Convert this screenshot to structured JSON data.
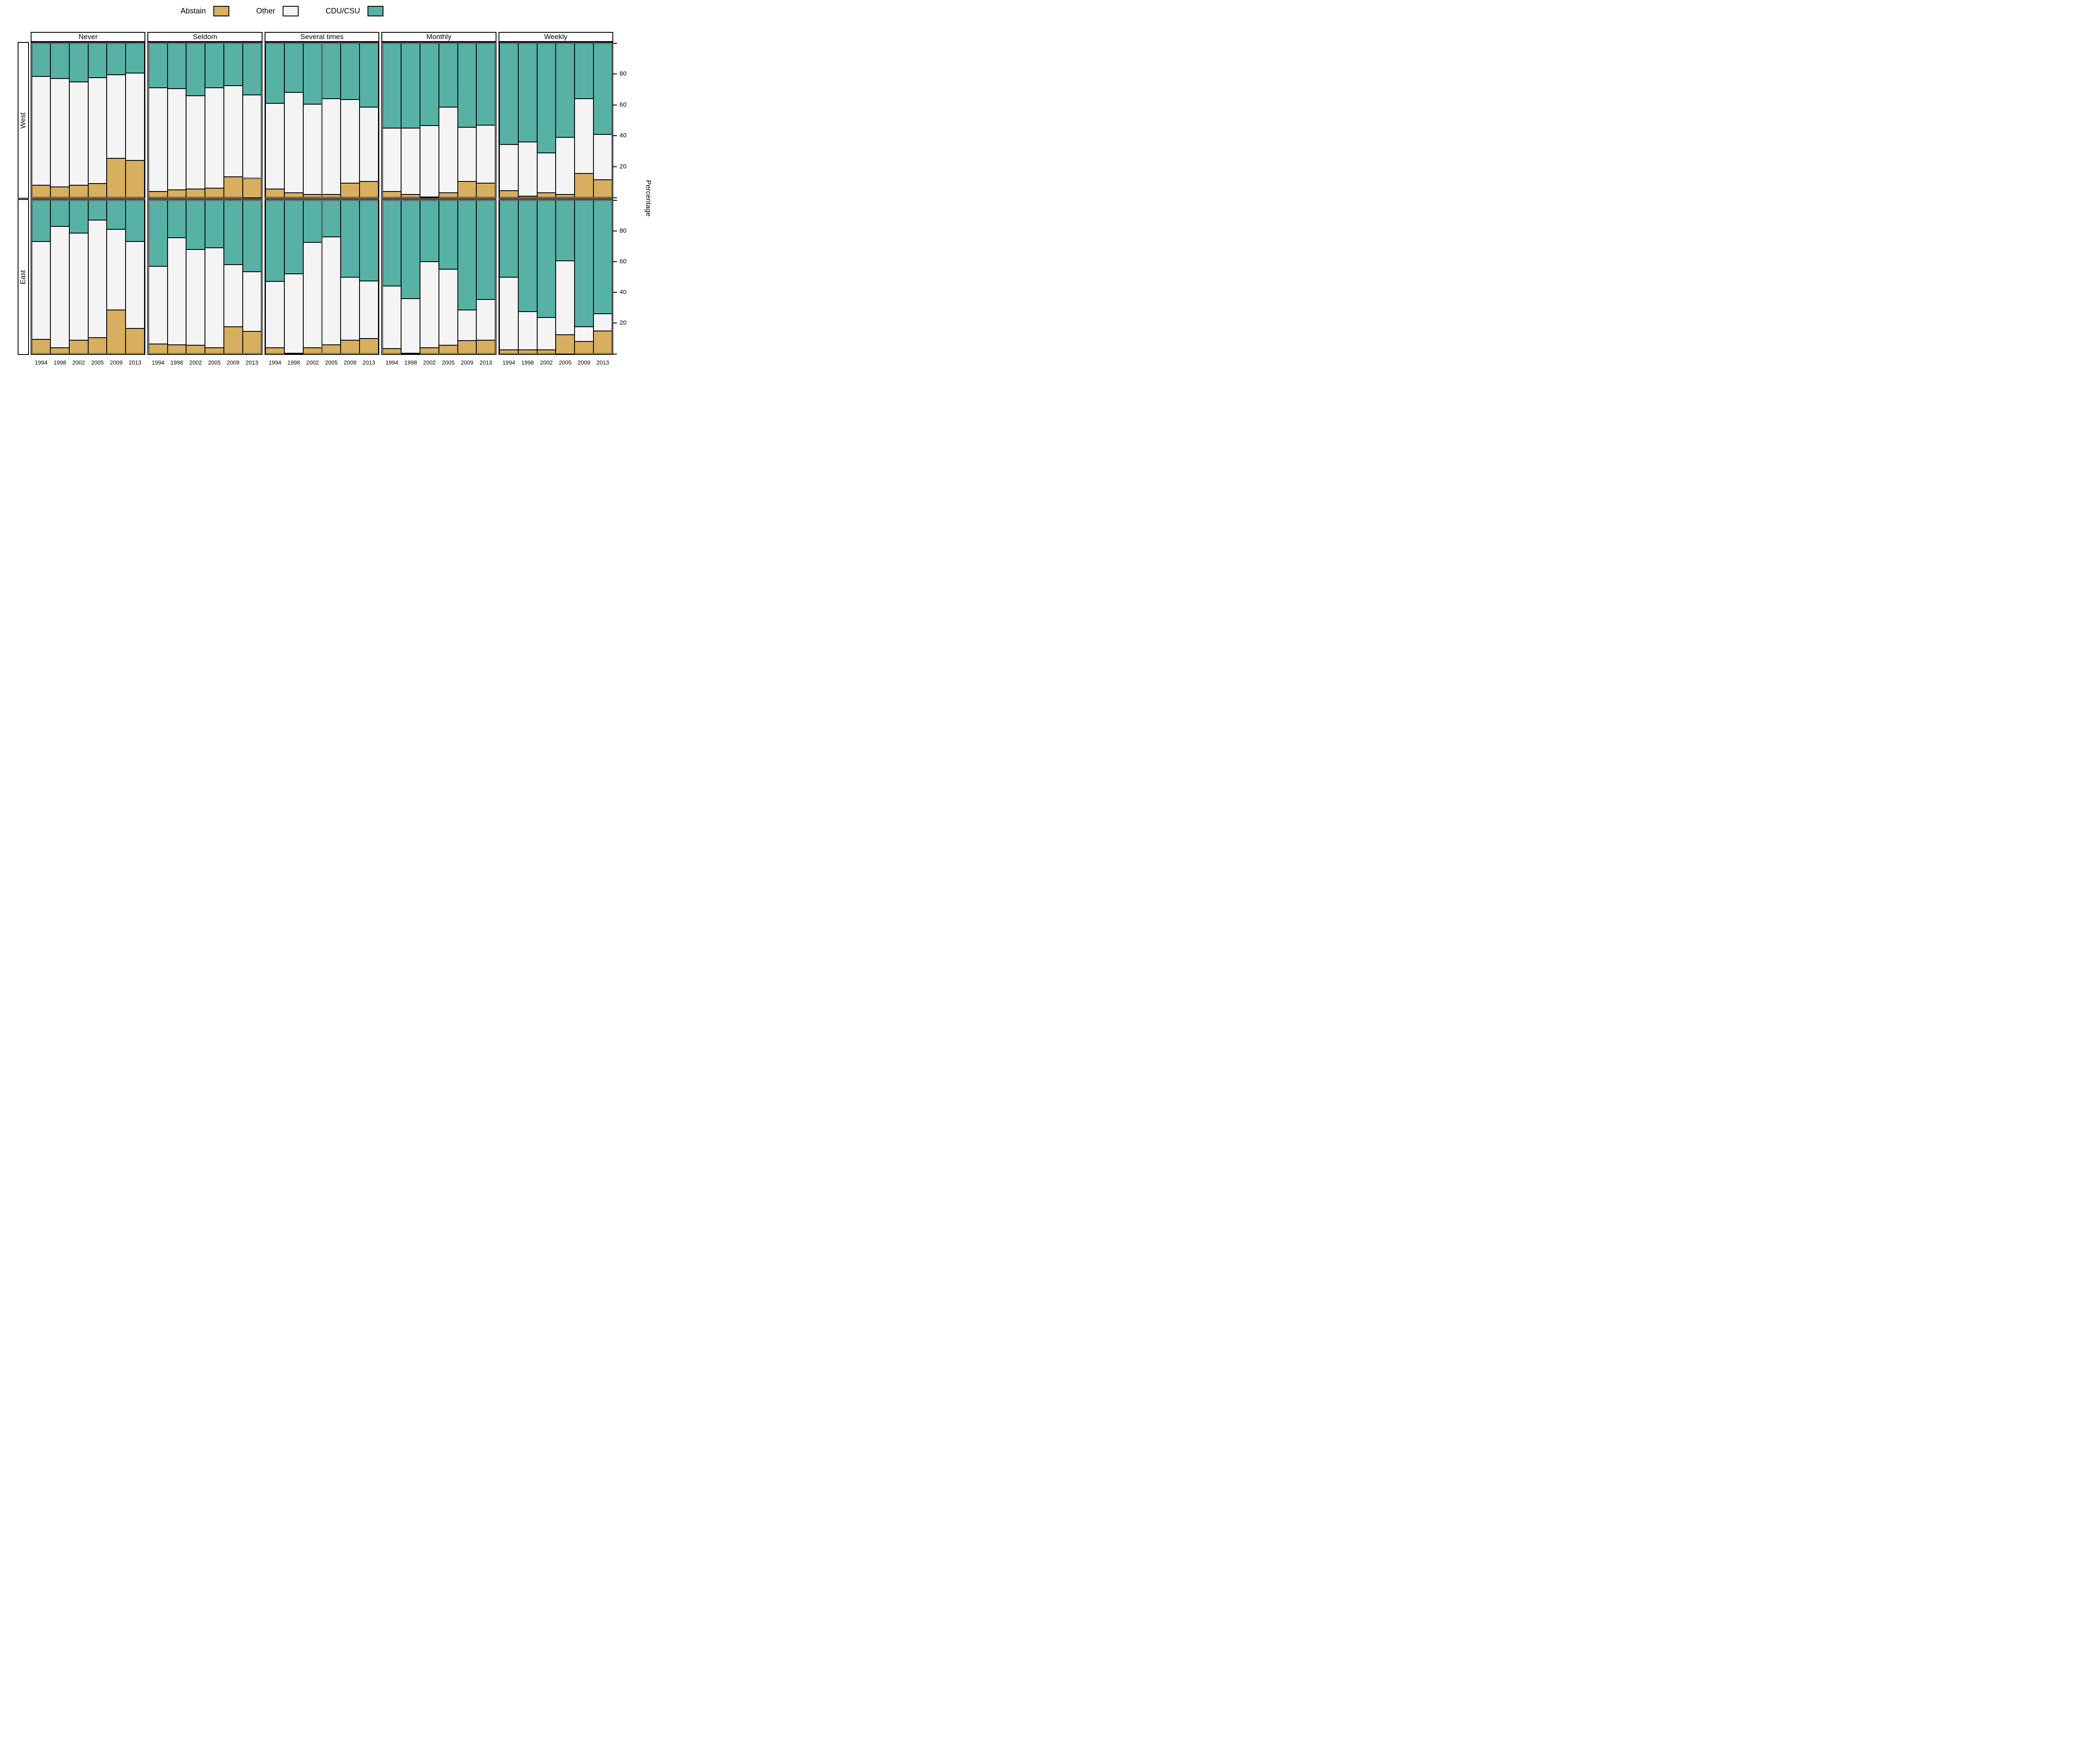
{
  "legend": {
    "items": [
      {
        "label": "Abstain",
        "color": "#d8ae5f"
      },
      {
        "label": "Other",
        "color": "#f4f4f4"
      },
      {
        "label": "CDU/CSU",
        "color": "#57b2a5"
      }
    ]
  },
  "chart_data": {
    "type": "bar",
    "subtype": "stacked-percentage-lattice",
    "title": "",
    "xlabel": "",
    "ylabel": "Percentage",
    "ylim": [
      0,
      100
    ],
    "y_ticks": [
      20,
      40,
      60,
      80
    ],
    "legend_position": "top",
    "grid": false,
    "row_facets": [
      "West",
      "East"
    ],
    "column_facets": [
      "Never",
      "Seldom",
      "Several times",
      "Monthly",
      "Weekly"
    ],
    "categories": [
      "1994",
      "1998",
      "2002",
      "2005",
      "2009",
      "2013"
    ],
    "stack_order_bottom_to_top": [
      "Abstain",
      "Other",
      "CDU/CSU"
    ],
    "colors": {
      "Abstain": "#d8ae5f",
      "Other": "#f4f4f4",
      "CDU/CSU": "#57b2a5"
    },
    "panels": [
      {
        "region": "West",
        "attendance": "Never",
        "bars": [
          {
            "year": "1994",
            "abstain": 8,
            "other": 70.5,
            "cdu": 21.5
          },
          {
            "year": "1998",
            "abstain": 7,
            "other": 70,
            "cdu": 23
          },
          {
            "year": "2002",
            "abstain": 8,
            "other": 67,
            "cdu": 25
          },
          {
            "year": "2005",
            "abstain": 9,
            "other": 68.5,
            "cdu": 22.5
          },
          {
            "year": "2009",
            "abstain": 25.5,
            "other": 54,
            "cdu": 20.5
          },
          {
            "year": "2013",
            "abstain": 24,
            "other": 56.5,
            "cdu": 19.5
          }
        ]
      },
      {
        "region": "West",
        "attendance": "Seldom",
        "bars": [
          {
            "year": "1994",
            "abstain": 4,
            "other": 67,
            "cdu": 29
          },
          {
            "year": "1998",
            "abstain": 5,
            "other": 65.5,
            "cdu": 29.5
          },
          {
            "year": "2002",
            "abstain": 5.5,
            "other": 60.5,
            "cdu": 34
          },
          {
            "year": "2005",
            "abstain": 6,
            "other": 65,
            "cdu": 29
          },
          {
            "year": "2009",
            "abstain": 13.5,
            "other": 59,
            "cdu": 27.5
          },
          {
            "year": "2013",
            "abstain": 12.5,
            "other": 54,
            "cdu": 33.5
          }
        ]
      },
      {
        "region": "West",
        "attendance": "Several times",
        "bars": [
          {
            "year": "1994",
            "abstain": 5.5,
            "other": 55.5,
            "cdu": 39
          },
          {
            "year": "1998",
            "abstain": 3,
            "other": 65,
            "cdu": 32
          },
          {
            "year": "2002",
            "abstain": 2,
            "other": 58.5,
            "cdu": 39.5
          },
          {
            "year": "2005",
            "abstain": 2,
            "other": 62,
            "cdu": 36
          },
          {
            "year": "2009",
            "abstain": 9.5,
            "other": 54,
            "cdu": 36.5
          },
          {
            "year": "2013",
            "abstain": 10.5,
            "other": 48,
            "cdu": 41.5
          }
        ]
      },
      {
        "region": "West",
        "attendance": "Monthly",
        "bars": [
          {
            "year": "1994",
            "abstain": 4,
            "other": 41,
            "cdu": 55
          },
          {
            "year": "1998",
            "abstain": 2,
            "other": 43,
            "cdu": 55
          },
          {
            "year": "2002",
            "abstain": 0.5,
            "other": 46,
            "cdu": 53.5
          },
          {
            "year": "2005",
            "abstain": 3,
            "other": 55.5,
            "cdu": 41.5
          },
          {
            "year": "2009",
            "abstain": 10.5,
            "other": 35,
            "cdu": 54.5
          },
          {
            "year": "2013",
            "abstain": 9.5,
            "other": 37.5,
            "cdu": 53
          }
        ]
      },
      {
        "region": "West",
        "attendance": "Weekly",
        "bars": [
          {
            "year": "1994",
            "abstain": 4.5,
            "other": 30,
            "cdu": 65.5
          },
          {
            "year": "1998",
            "abstain": 1,
            "other": 35,
            "cdu": 64
          },
          {
            "year": "2002",
            "abstain": 3,
            "other": 26,
            "cdu": 71
          },
          {
            "year": "2005",
            "abstain": 2,
            "other": 37,
            "cdu": 61
          },
          {
            "year": "2009",
            "abstain": 15.5,
            "other": 48.5,
            "cdu": 36
          },
          {
            "year": "2013",
            "abstain": 11.5,
            "other": 29.5,
            "cdu": 59
          }
        ]
      },
      {
        "region": "East",
        "attendance": "Never",
        "bars": [
          {
            "year": "1994",
            "abstain": 9.5,
            "other": 63.5,
            "cdu": 27
          },
          {
            "year": "1998",
            "abstain": 4,
            "other": 79,
            "cdu": 17
          },
          {
            "year": "2002",
            "abstain": 9,
            "other": 69.5,
            "cdu": 21.5
          },
          {
            "year": "2005",
            "abstain": 10.5,
            "other": 76.5,
            "cdu": 13
          },
          {
            "year": "2009",
            "abstain": 28.5,
            "other": 52.5,
            "cdu": 19
          },
          {
            "year": "2013",
            "abstain": 16.5,
            "other": 56.5,
            "cdu": 27
          }
        ]
      },
      {
        "region": "East",
        "attendance": "Seldom",
        "bars": [
          {
            "year": "1994",
            "abstain": 6.5,
            "other": 50.5,
            "cdu": 43
          },
          {
            "year": "1998",
            "abstain": 6,
            "other": 69.5,
            "cdu": 24.5
          },
          {
            "year": "2002",
            "abstain": 5.5,
            "other": 62.5,
            "cdu": 32
          },
          {
            "year": "2005",
            "abstain": 4,
            "other": 65,
            "cdu": 31
          },
          {
            "year": "2009",
            "abstain": 17.5,
            "other": 40.5,
            "cdu": 42
          },
          {
            "year": "2013",
            "abstain": 14.5,
            "other": 39,
            "cdu": 46.5
          }
        ]
      },
      {
        "region": "East",
        "attendance": "Several times",
        "bars": [
          {
            "year": "1994",
            "abstain": 4,
            "other": 43,
            "cdu": 53
          },
          {
            "year": "1998",
            "abstain": 0.5,
            "other": 51.5,
            "cdu": 48
          },
          {
            "year": "2002",
            "abstain": 4,
            "other": 68.5,
            "cdu": 27.5
          },
          {
            "year": "2005",
            "abstain": 6,
            "other": 70,
            "cdu": 24
          },
          {
            "year": "2009",
            "abstain": 9,
            "other": 41,
            "cdu": 50
          },
          {
            "year": "2013",
            "abstain": 10,
            "other": 37.5,
            "cdu": 52.5
          }
        ]
      },
      {
        "region": "East",
        "attendance": "Monthly",
        "bars": [
          {
            "year": "1994",
            "abstain": 3.5,
            "other": 40.5,
            "cdu": 56
          },
          {
            "year": "1998",
            "abstain": 0.5,
            "other": 35.5,
            "cdu": 64
          },
          {
            "year": "2002",
            "abstain": 4,
            "other": 56,
            "cdu": 40
          },
          {
            "year": "2005",
            "abstain": 5.5,
            "other": 49.5,
            "cdu": 45
          },
          {
            "year": "2009",
            "abstain": 8.5,
            "other": 20,
            "cdu": 71.5
          },
          {
            "year": "2013",
            "abstain": 9,
            "other": 26.5,
            "cdu": 64.5
          }
        ]
      },
      {
        "region": "East",
        "attendance": "Weekly",
        "bars": [
          {
            "year": "1994",
            "abstain": 2.5,
            "other": 47.5,
            "cdu": 50
          },
          {
            "year": "1998",
            "abstain": 2.5,
            "other": 25,
            "cdu": 72.5
          },
          {
            "year": "2002",
            "abstain": 2.5,
            "other": 21,
            "cdu": 76.5
          },
          {
            "year": "2005",
            "abstain": 12.5,
            "other": 48,
            "cdu": 39.5
          },
          {
            "year": "2009",
            "abstain": 8,
            "other": 9.5,
            "cdu": 82.5
          },
          {
            "year": "2013",
            "abstain": 15,
            "other": 11,
            "cdu": 74
          }
        ]
      }
    ]
  }
}
